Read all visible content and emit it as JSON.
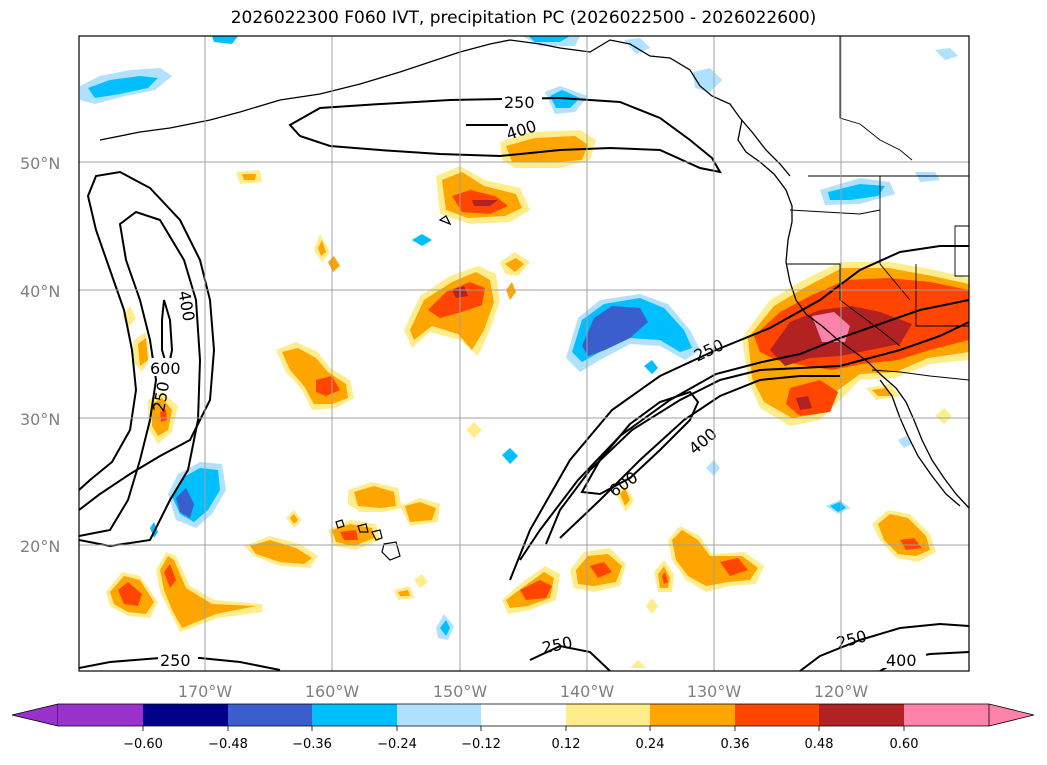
{
  "title": "2026022300 F060 IVT, precipitation PC (2026022500 - 2026022600)",
  "map": {
    "lon_labels": [
      "170°W",
      "160°W",
      "150°W",
      "140°W",
      "130°W",
      "120°W"
    ],
    "lat_labels": [
      "50°N",
      "40°N",
      "30°N",
      "20°N"
    ],
    "ivt_contour_labels": [
      "250",
      "400",
      "250",
      "400",
      "600",
      "250",
      "250",
      "400",
      "600",
      "250",
      "250",
      "400"
    ]
  },
  "colorbar": {
    "ticks": [
      "−0.60",
      "−0.48",
      "−0.36",
      "−0.24",
      "−0.12",
      "0.12",
      "0.24",
      "0.36",
      "0.48",
      "0.60"
    ],
    "colors": [
      "#9932cc",
      "#00008b",
      "#3a5fcd",
      "#00bfff",
      "#b0e2ff",
      "#ffffff",
      "#ffec8b",
      "#ffa500",
      "#ff4500",
      "#b22222",
      "#ff82ab"
    ]
  },
  "colors": {
    "neg1": "#b0e2ff",
    "neg2": "#00bfff",
    "neg3": "#3a5fcd",
    "neg4": "#00008b",
    "pos1": "#ffec8b",
    "pos2": "#ffa500",
    "pos3": "#ff4500",
    "pos4": "#b22222",
    "pos5": "#ff82ab"
  }
}
